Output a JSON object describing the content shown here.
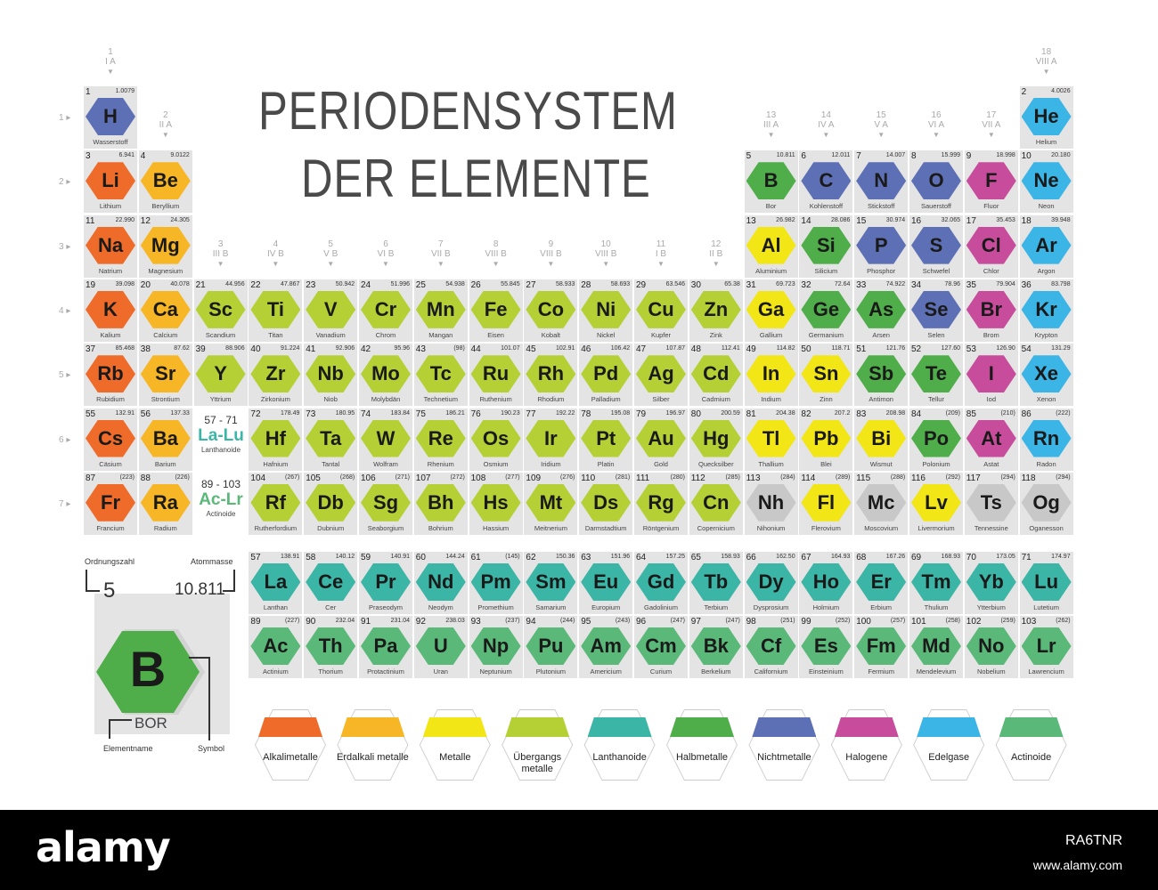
{
  "title_line1": "PERIODENSYSTEM",
  "title_line2": "DER ELEMENTE",
  "colors": {
    "alkali": "#ee6b2a",
    "earth": "#f7b625",
    "metal": "#f2e616",
    "trans": "#b5d035",
    "lan": "#3bb5a5",
    "semi": "#4fae4a",
    "nonmetal": "#5d6fb5",
    "halogen": "#c84c9c",
    "noble": "#3bb4e6",
    "act": "#5ab879",
    "unknown": "#c8c8c8"
  },
  "groups": [
    {
      "n": "1",
      "r": "I A"
    },
    {
      "n": "2",
      "r": "II A"
    },
    {
      "n": "3",
      "r": "III B"
    },
    {
      "n": "4",
      "r": "IV B"
    },
    {
      "n": "5",
      "r": "V B"
    },
    {
      "n": "6",
      "r": "VI B"
    },
    {
      "n": "7",
      "r": "VII B"
    },
    {
      "n": "8",
      "r": "VIII B"
    },
    {
      "n": "9",
      "r": "VIII B"
    },
    {
      "n": "10",
      "r": "VIII B"
    },
    {
      "n": "11",
      "r": "I B"
    },
    {
      "n": "12",
      "r": "II B"
    },
    {
      "n": "13",
      "r": "III A"
    },
    {
      "n": "14",
      "r": "IV A"
    },
    {
      "n": "15",
      "r": "V A"
    },
    {
      "n": "16",
      "r": "VI A"
    },
    {
      "n": "17",
      "r": "VII A"
    },
    {
      "n": "18",
      "r": "VIII A"
    }
  ],
  "periods": [
    "1",
    "2",
    "3",
    "4",
    "5",
    "6",
    "7"
  ],
  "elements": [
    {
      "z": "1",
      "s": "H",
      "n": "Wasserstoff",
      "m": "1.0079",
      "c": "nonmetal",
      "g": 1,
      "p": 1
    },
    {
      "z": "2",
      "s": "He",
      "n": "Helium",
      "m": "4.0026",
      "c": "noble",
      "g": 18,
      "p": 1
    },
    {
      "z": "3",
      "s": "Li",
      "n": "Lithium",
      "m": "6.941",
      "c": "alkali",
      "g": 1,
      "p": 2
    },
    {
      "z": "4",
      "s": "Be",
      "n": "Beryllium",
      "m": "9.0122",
      "c": "earth",
      "g": 2,
      "p": 2
    },
    {
      "z": "5",
      "s": "B",
      "n": "Bor",
      "m": "10.811",
      "c": "semi",
      "g": 13,
      "p": 2
    },
    {
      "z": "6",
      "s": "C",
      "n": "Kohlenstoff",
      "m": "12.011",
      "c": "nonmetal",
      "g": 14,
      "p": 2
    },
    {
      "z": "7",
      "s": "N",
      "n": "Stickstoff",
      "m": "14.007",
      "c": "nonmetal",
      "g": 15,
      "p": 2
    },
    {
      "z": "8",
      "s": "O",
      "n": "Sauerstoff",
      "m": "15.999",
      "c": "nonmetal",
      "g": 16,
      "p": 2
    },
    {
      "z": "9",
      "s": "F",
      "n": "Fluor",
      "m": "18.998",
      "c": "halogen",
      "g": 17,
      "p": 2
    },
    {
      "z": "10",
      "s": "Ne",
      "n": "Neon",
      "m": "20.180",
      "c": "noble",
      "g": 18,
      "p": 2
    },
    {
      "z": "11",
      "s": "Na",
      "n": "Natrium",
      "m": "22.990",
      "c": "alkali",
      "g": 1,
      "p": 3
    },
    {
      "z": "12",
      "s": "Mg",
      "n": "Magnesium",
      "m": "24.305",
      "c": "earth",
      "g": 2,
      "p": 3
    },
    {
      "z": "13",
      "s": "Al",
      "n": "Aluminium",
      "m": "26.982",
      "c": "metal",
      "g": 13,
      "p": 3
    },
    {
      "z": "14",
      "s": "Si",
      "n": "Silicium",
      "m": "28.086",
      "c": "semi",
      "g": 14,
      "p": 3
    },
    {
      "z": "15",
      "s": "P",
      "n": "Phosphor",
      "m": "30.974",
      "c": "nonmetal",
      "g": 15,
      "p": 3
    },
    {
      "z": "16",
      "s": "S",
      "n": "Schwefel",
      "m": "32.065",
      "c": "nonmetal",
      "g": 16,
      "p": 3
    },
    {
      "z": "17",
      "s": "Cl",
      "n": "Chlor",
      "m": "35.453",
      "c": "halogen",
      "g": 17,
      "p": 3
    },
    {
      "z": "18",
      "s": "Ar",
      "n": "Argon",
      "m": "39.948",
      "c": "noble",
      "g": 18,
      "p": 3
    },
    {
      "z": "19",
      "s": "K",
      "n": "Kalium",
      "m": "39.098",
      "c": "alkali",
      "g": 1,
      "p": 4
    },
    {
      "z": "20",
      "s": "Ca",
      "n": "Calcium",
      "m": "40.078",
      "c": "earth",
      "g": 2,
      "p": 4
    },
    {
      "z": "21",
      "s": "Sc",
      "n": "Scandium",
      "m": "44.956",
      "c": "trans",
      "g": 3,
      "p": 4
    },
    {
      "z": "22",
      "s": "Ti",
      "n": "Titan",
      "m": "47.867",
      "c": "trans",
      "g": 4,
      "p": 4
    },
    {
      "z": "23",
      "s": "V",
      "n": "Vanadium",
      "m": "50.942",
      "c": "trans",
      "g": 5,
      "p": 4
    },
    {
      "z": "24",
      "s": "Cr",
      "n": "Chrom",
      "m": "51.996",
      "c": "trans",
      "g": 6,
      "p": 4
    },
    {
      "z": "25",
      "s": "Mn",
      "n": "Mangan",
      "m": "54.938",
      "c": "trans",
      "g": 7,
      "p": 4
    },
    {
      "z": "26",
      "s": "Fe",
      "n": "Eisen",
      "m": "55.845",
      "c": "trans",
      "g": 8,
      "p": 4
    },
    {
      "z": "27",
      "s": "Co",
      "n": "Kobalt",
      "m": "58.933",
      "c": "trans",
      "g": 9,
      "p": 4
    },
    {
      "z": "28",
      "s": "Ni",
      "n": "Nickel",
      "m": "58.693",
      "c": "trans",
      "g": 10,
      "p": 4
    },
    {
      "z": "29",
      "s": "Cu",
      "n": "Kupfer",
      "m": "63.546",
      "c": "trans",
      "g": 11,
      "p": 4
    },
    {
      "z": "30",
      "s": "Zn",
      "n": "Zink",
      "m": "65.38",
      "c": "trans",
      "g": 12,
      "p": 4
    },
    {
      "z": "31",
      "s": "Ga",
      "n": "Gallium",
      "m": "69.723",
      "c": "metal",
      "g": 13,
      "p": 4
    },
    {
      "z": "32",
      "s": "Ge",
      "n": "Germanium",
      "m": "72.64",
      "c": "semi",
      "g": 14,
      "p": 4
    },
    {
      "z": "33",
      "s": "As",
      "n": "Arsen",
      "m": "74.922",
      "c": "semi",
      "g": 15,
      "p": 4
    },
    {
      "z": "34",
      "s": "Se",
      "n": "Selen",
      "m": "78.96",
      "c": "nonmetal",
      "g": 16,
      "p": 4
    },
    {
      "z": "35",
      "s": "Br",
      "n": "Brom",
      "m": "79.904",
      "c": "halogen",
      "g": 17,
      "p": 4
    },
    {
      "z": "36",
      "s": "Kr",
      "n": "Krypton",
      "m": "83.798",
      "c": "noble",
      "g": 18,
      "p": 4
    },
    {
      "z": "37",
      "s": "Rb",
      "n": "Rubidium",
      "m": "85.468",
      "c": "alkali",
      "g": 1,
      "p": 5
    },
    {
      "z": "38",
      "s": "Sr",
      "n": "Strontium",
      "m": "87.62",
      "c": "earth",
      "g": 2,
      "p": 5
    },
    {
      "z": "39",
      "s": "Y",
      "n": "Yttrium",
      "m": "88.906",
      "c": "trans",
      "g": 3,
      "p": 5
    },
    {
      "z": "40",
      "s": "Zr",
      "n": "Zirkonium",
      "m": "91.224",
      "c": "trans",
      "g": 4,
      "p": 5
    },
    {
      "z": "41",
      "s": "Nb",
      "n": "Niob",
      "m": "92.906",
      "c": "trans",
      "g": 5,
      "p": 5
    },
    {
      "z": "42",
      "s": "Mo",
      "n": "Molybdän",
      "m": "95.96",
      "c": "trans",
      "g": 6,
      "p": 5
    },
    {
      "z": "43",
      "s": "Tc",
      "n": "Technetium",
      "m": "(98)",
      "c": "trans",
      "g": 7,
      "p": 5
    },
    {
      "z": "44",
      "s": "Ru",
      "n": "Ruthenium",
      "m": "101.07",
      "c": "trans",
      "g": 8,
      "p": 5
    },
    {
      "z": "45",
      "s": "Rh",
      "n": "Rhodium",
      "m": "102.91",
      "c": "trans",
      "g": 9,
      "p": 5
    },
    {
      "z": "46",
      "s": "Pd",
      "n": "Palladium",
      "m": "106.42",
      "c": "trans",
      "g": 10,
      "p": 5
    },
    {
      "z": "47",
      "s": "Ag",
      "n": "Silber",
      "m": "107.87",
      "c": "trans",
      "g": 11,
      "p": 5
    },
    {
      "z": "48",
      "s": "Cd",
      "n": "Cadmium",
      "m": "112.41",
      "c": "trans",
      "g": 12,
      "p": 5
    },
    {
      "z": "49",
      "s": "In",
      "n": "Indium",
      "m": "114.82",
      "c": "metal",
      "g": 13,
      "p": 5
    },
    {
      "z": "50",
      "s": "Sn",
      "n": "Zinn",
      "m": "118.71",
      "c": "metal",
      "g": 14,
      "p": 5
    },
    {
      "z": "51",
      "s": "Sb",
      "n": "Antimon",
      "m": "121.76",
      "c": "semi",
      "g": 15,
      "p": 5
    },
    {
      "z": "52",
      "s": "Te",
      "n": "Tellur",
      "m": "127.60",
      "c": "semi",
      "g": 16,
      "p": 5
    },
    {
      "z": "53",
      "s": "I",
      "n": "Iod",
      "m": "126.90",
      "c": "halogen",
      "g": 17,
      "p": 5
    },
    {
      "z": "54",
      "s": "Xe",
      "n": "Xenon",
      "m": "131.29",
      "c": "noble",
      "g": 18,
      "p": 5
    },
    {
      "z": "55",
      "s": "Cs",
      "n": "Cäsium",
      "m": "132.91",
      "c": "alkali",
      "g": 1,
      "p": 6
    },
    {
      "z": "56",
      "s": "Ba",
      "n": "Barium",
      "m": "137.33",
      "c": "earth",
      "g": 2,
      "p": 6
    },
    {
      "z": "72",
      "s": "Hf",
      "n": "Hafnium",
      "m": "178.49",
      "c": "trans",
      "g": 4,
      "p": 6
    },
    {
      "z": "73",
      "s": "Ta",
      "n": "Tantal",
      "m": "180.95",
      "c": "trans",
      "g": 5,
      "p": 6
    },
    {
      "z": "74",
      "s": "W",
      "n": "Wolfram",
      "m": "183.84",
      "c": "trans",
      "g": 6,
      "p": 6
    },
    {
      "z": "75",
      "s": "Re",
      "n": "Rhenium",
      "m": "186.21",
      "c": "trans",
      "g": 7,
      "p": 6
    },
    {
      "z": "76",
      "s": "Os",
      "n": "Osmium",
      "m": "190.23",
      "c": "trans",
      "g": 8,
      "p": 6
    },
    {
      "z": "77",
      "s": "Ir",
      "n": "Iridium",
      "m": "192.22",
      "c": "trans",
      "g": 9,
      "p": 6
    },
    {
      "z": "78",
      "s": "Pt",
      "n": "Platin",
      "m": "195.08",
      "c": "trans",
      "g": 10,
      "p": 6
    },
    {
      "z": "79",
      "s": "Au",
      "n": "Gold",
      "m": "196.97",
      "c": "trans",
      "g": 11,
      "p": 6
    },
    {
      "z": "80",
      "s": "Hg",
      "n": "Quecksilber",
      "m": "200.59",
      "c": "trans",
      "g": 12,
      "p": 6
    },
    {
      "z": "81",
      "s": "Tl",
      "n": "Thallium",
      "m": "204.38",
      "c": "metal",
      "g": 13,
      "p": 6
    },
    {
      "z": "82",
      "s": "Pb",
      "n": "Blei",
      "m": "207.2",
      "c": "metal",
      "g": 14,
      "p": 6
    },
    {
      "z": "83",
      "s": "Bi",
      "n": "Wismut",
      "m": "208.98",
      "c": "metal",
      "g": 15,
      "p": 6
    },
    {
      "z": "84",
      "s": "Po",
      "n": "Polonium",
      "m": "(209)",
      "c": "semi",
      "g": 16,
      "p": 6
    },
    {
      "z": "85",
      "s": "At",
      "n": "Astat",
      "m": "(210)",
      "c": "halogen",
      "g": 17,
      "p": 6
    },
    {
      "z": "86",
      "s": "Rn",
      "n": "Radon",
      "m": "(222)",
      "c": "noble",
      "g": 18,
      "p": 6
    },
    {
      "z": "87",
      "s": "Fr",
      "n": "Francium",
      "m": "(223)",
      "c": "alkali",
      "g": 1,
      "p": 7
    },
    {
      "z": "88",
      "s": "Ra",
      "n": "Radium",
      "m": "(226)",
      "c": "earth",
      "g": 2,
      "p": 7
    },
    {
      "z": "104",
      "s": "Rf",
      "n": "Rutherfordium",
      "m": "(267)",
      "c": "trans",
      "g": 4,
      "p": 7
    },
    {
      "z": "105",
      "s": "Db",
      "n": "Dubnium",
      "m": "(268)",
      "c": "trans",
      "g": 5,
      "p": 7
    },
    {
      "z": "106",
      "s": "Sg",
      "n": "Seaborgium",
      "m": "(271)",
      "c": "trans",
      "g": 6,
      "p": 7
    },
    {
      "z": "107",
      "s": "Bh",
      "n": "Bohrium",
      "m": "(272)",
      "c": "trans",
      "g": 7,
      "p": 7
    },
    {
      "z": "108",
      "s": "Hs",
      "n": "Hassium",
      "m": "(277)",
      "c": "trans",
      "g": 8,
      "p": 7
    },
    {
      "z": "109",
      "s": "Mt",
      "n": "Meitnerium",
      "m": "(276)",
      "c": "trans",
      "g": 9,
      "p": 7
    },
    {
      "z": "110",
      "s": "Ds",
      "n": "Darmstadtium",
      "m": "(281)",
      "c": "trans",
      "g": 10,
      "p": 7
    },
    {
      "z": "111",
      "s": "Rg",
      "n": "Röntgenium",
      "m": "(280)",
      "c": "trans",
      "g": 11,
      "p": 7
    },
    {
      "z": "112",
      "s": "Cn",
      "n": "Copernicium",
      "m": "(285)",
      "c": "trans",
      "g": 12,
      "p": 7
    },
    {
      "z": "113",
      "s": "Nh",
      "n": "Nihonium",
      "m": "(284)",
      "c": "unknown",
      "g": 13,
      "p": 7
    },
    {
      "z": "114",
      "s": "Fl",
      "n": "Flerovium",
      "m": "(289)",
      "c": "metal",
      "g": 14,
      "p": 7
    },
    {
      "z": "115",
      "s": "Mc",
      "n": "Moscovium",
      "m": "(288)",
      "c": "unknown",
      "g": 15,
      "p": 7
    },
    {
      "z": "116",
      "s": "Lv",
      "n": "Livermorium",
      "m": "(292)",
      "c": "metal",
      "g": 16,
      "p": 7
    },
    {
      "z": "117",
      "s": "Ts",
      "n": "Tennessine",
      "m": "(294)",
      "c": "unknown",
      "g": 17,
      "p": 7
    },
    {
      "z": "118",
      "s": "Og",
      "n": "Oganesson",
      "m": "(294)",
      "c": "unknown",
      "g": 18,
      "p": 7
    }
  ],
  "lanthanoids": [
    {
      "z": "57",
      "s": "La",
      "n": "Lanthan",
      "m": "138.91"
    },
    {
      "z": "58",
      "s": "Ce",
      "n": "Cer",
      "m": "140.12"
    },
    {
      "z": "59",
      "s": "Pr",
      "n": "Praseodym",
      "m": "140.91"
    },
    {
      "z": "60",
      "s": "Nd",
      "n": "Neodym",
      "m": "144.24"
    },
    {
      "z": "61",
      "s": "Pm",
      "n": "Promethium",
      "m": "(145)"
    },
    {
      "z": "62",
      "s": "Sm",
      "n": "Samarium",
      "m": "150.36"
    },
    {
      "z": "63",
      "s": "Eu",
      "n": "Europium",
      "m": "151.96"
    },
    {
      "z": "64",
      "s": "Gd",
      "n": "Gadolinium",
      "m": "157.25"
    },
    {
      "z": "65",
      "s": "Tb",
      "n": "Terbium",
      "m": "158.93"
    },
    {
      "z": "66",
      "s": "Dy",
      "n": "Dysprosium",
      "m": "162.50"
    },
    {
      "z": "67",
      "s": "Ho",
      "n": "Holmium",
      "m": "164.93"
    },
    {
      "z": "68",
      "s": "Er",
      "n": "Erbium",
      "m": "167.26"
    },
    {
      "z": "69",
      "s": "Tm",
      "n": "Thulium",
      "m": "168.93"
    },
    {
      "z": "70",
      "s": "Yb",
      "n": "Ytterbium",
      "m": "173.05"
    },
    {
      "z": "71",
      "s": "Lu",
      "n": "Lutetium",
      "m": "174.97"
    }
  ],
  "actinoids": [
    {
      "z": "89",
      "s": "Ac",
      "n": "Actinium",
      "m": "(227)"
    },
    {
      "z": "90",
      "s": "Th",
      "n": "Thorium",
      "m": "232.04"
    },
    {
      "z": "91",
      "s": "Pa",
      "n": "Protactinium",
      "m": "231.04"
    },
    {
      "z": "92",
      "s": "U",
      "n": "Uran",
      "m": "238.03"
    },
    {
      "z": "93",
      "s": "Np",
      "n": "Neptunium",
      "m": "(237)"
    },
    {
      "z": "94",
      "s": "Pu",
      "n": "Plutonium",
      "m": "(244)"
    },
    {
      "z": "95",
      "s": "Am",
      "n": "Americium",
      "m": "(243)"
    },
    {
      "z": "96",
      "s": "Cm",
      "n": "Curium",
      "m": "(247)"
    },
    {
      "z": "97",
      "s": "Bk",
      "n": "Berkelium",
      "m": "(247)"
    },
    {
      "z": "98",
      "s": "Cf",
      "n": "Californium",
      "m": "(251)"
    },
    {
      "z": "99",
      "s": "Es",
      "n": "Einsteinium",
      "m": "(252)"
    },
    {
      "z": "100",
      "s": "Fm",
      "n": "Fermium",
      "m": "(257)"
    },
    {
      "z": "101",
      "s": "Md",
      "n": "Mendelevium",
      "m": "(258)"
    },
    {
      "z": "102",
      "s": "No",
      "n": "Nobelium",
      "m": "(259)"
    },
    {
      "z": "103",
      "s": "Lr",
      "n": "Lawrencium",
      "m": "(262)"
    }
  ],
  "lan_placeholder": {
    "range": "57 - 71",
    "symbol": "La-Lu",
    "name": "Lanthanoide"
  },
  "act_placeholder": {
    "range": "89 - 103",
    "symbol": "Ac-Lr",
    "name": "Actinoide"
  },
  "key": {
    "ordnungszahl_label": "Ordnungszahl",
    "atommasse_label": "Atommasse",
    "number": "5",
    "mass": "10.811",
    "symbol": "B",
    "name": "BOR",
    "elementname_label": "Elementname",
    "symbol_label": "Symbol"
  },
  "legend": [
    {
      "label": "Alkalimetalle",
      "c": "alkali"
    },
    {
      "label": "Erdalkali metalle",
      "c": "earth"
    },
    {
      "label": "Metalle",
      "c": "metal"
    },
    {
      "label": "Übergangs metalle",
      "c": "trans"
    },
    {
      "label": "Lanthanoide",
      "c": "lan"
    },
    {
      "label": "Halbmetalle",
      "c": "semi"
    },
    {
      "label": "Nichtmetalle",
      "c": "nonmetal"
    },
    {
      "label": "Halogene",
      "c": "halogen"
    },
    {
      "label": "Edelgase",
      "c": "noble"
    },
    {
      "label": "Actinoide",
      "c": "act"
    }
  ],
  "footer": {
    "logo": "alamy",
    "id": "RA6TNR",
    "url": "www.alamy.com"
  }
}
